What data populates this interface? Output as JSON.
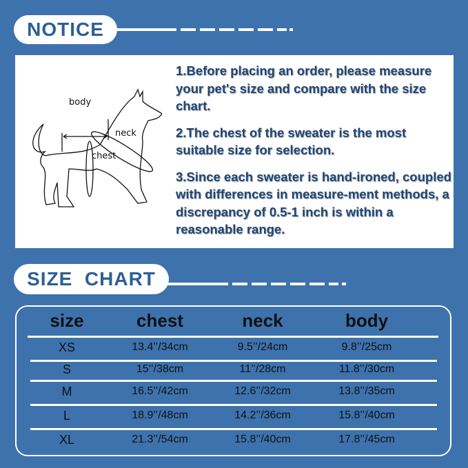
{
  "notice": {
    "title": "NOTICE",
    "diagram_labels": {
      "body": "body",
      "neck": "neck",
      "chest": "chest"
    },
    "items": [
      "1.Before placing an order, please measure your pet's size and compare with the size chart.",
      "2.The chest of the sweater is the most suitable size for selection.",
      "3.Since each sweater is hand-ironed, coupled with differences in measure-ment methods, a discrepancy of 0.5-1 inch is within a reasonable range."
    ]
  },
  "size_chart": {
    "title": "SIZE  CHART",
    "headers": [
      "size",
      "chest",
      "neck",
      "body"
    ],
    "rows": [
      [
        "XS",
        "13.4’’/34cm",
        "9.5’’/24cm",
        "9.8’’/25cm"
      ],
      [
        "S",
        "15’’/38cm",
        "11’’/28cm",
        "11.8’’/30cm"
      ],
      [
        "M",
        "16.5’’/42cm",
        "12.6’’/32cm",
        "13.8’’/35cm"
      ],
      [
        "L",
        "18.9’’/48cm",
        "14.2’’/36cm",
        "15.8’’/40cm"
      ],
      [
        "XL",
        "21.3’’/54cm",
        "15.8’’/40cm",
        "17.8’’/45cm"
      ]
    ]
  },
  "colors": {
    "background": "#3d72ad",
    "heading": "#2e5f97",
    "notice_text": "#24466e"
  }
}
